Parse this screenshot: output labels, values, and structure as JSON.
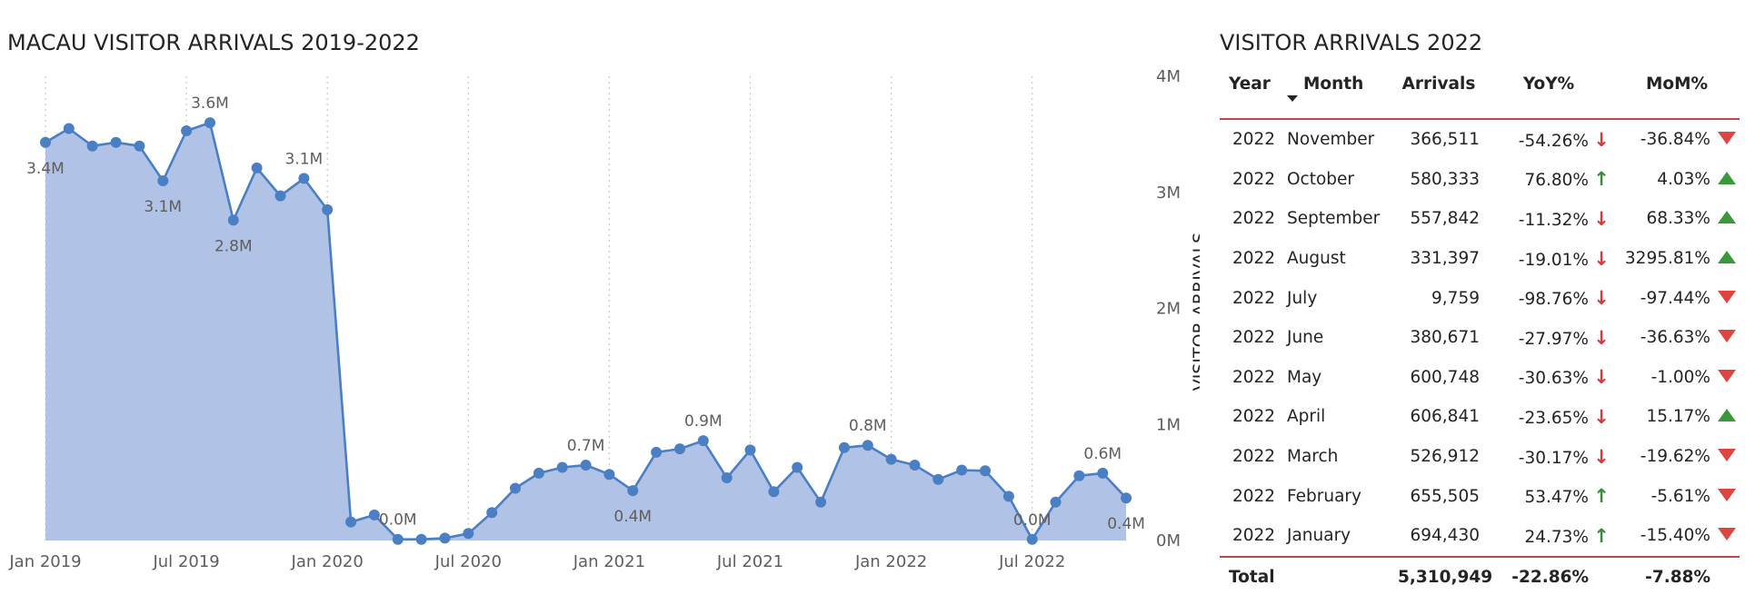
{
  "chart_title": "MACAU VISITOR ARRIVALS 2019-2022",
  "chart_data": {
    "type": "area",
    "title": "MACAU VISITOR ARRIVALS 2019-2022",
    "ylabel": "VISITOR ARRIVALS",
    "xlabel": "",
    "ylim": [
      0,
      4000000
    ],
    "y_ticks": [
      {
        "value": 4000000,
        "label": "4M"
      },
      {
        "value": 3000000,
        "label": "3M"
      },
      {
        "value": 2000000,
        "label": "2M"
      },
      {
        "value": 1000000,
        "label": "1M"
      },
      {
        "value": 0,
        "label": "0M"
      }
    ],
    "x_ticks": [
      {
        "index": 0,
        "label": "Jan 2019"
      },
      {
        "index": 6,
        "label": "Jul 2019"
      },
      {
        "index": 12,
        "label": "Jan 2020"
      },
      {
        "index": 18,
        "label": "Jul 2020"
      },
      {
        "index": 24,
        "label": "Jan 2021"
      },
      {
        "index": 30,
        "label": "Jul 2021"
      },
      {
        "index": 36,
        "label": "Jan 2022"
      },
      {
        "index": 42,
        "label": "Jul 2022"
      }
    ],
    "x": [
      "2019-01",
      "2019-02",
      "2019-03",
      "2019-04",
      "2019-05",
      "2019-06",
      "2019-07",
      "2019-08",
      "2019-09",
      "2019-10",
      "2019-11",
      "2019-12",
      "2020-01",
      "2020-02",
      "2020-03",
      "2020-04",
      "2020-05",
      "2020-06",
      "2020-07",
      "2020-08",
      "2020-09",
      "2020-10",
      "2020-11",
      "2020-12",
      "2021-01",
      "2021-02",
      "2021-03",
      "2021-04",
      "2021-05",
      "2021-06",
      "2021-07",
      "2021-08",
      "2021-09",
      "2021-10",
      "2021-11",
      "2021-12",
      "2022-01",
      "2022-02",
      "2022-03",
      "2022-04",
      "2022-05",
      "2022-06",
      "2022-07",
      "2022-08",
      "2022-09",
      "2022-10",
      "2022-11"
    ],
    "series": [
      {
        "values": [
          3430000,
          3550000,
          3400000,
          3430000,
          3400000,
          3100000,
          3530000,
          3600000,
          2760000,
          3210000,
          2970000,
          3120000,
          2850000,
          160000,
          220000,
          10000,
          10000,
          20000,
          60000,
          240000,
          450000,
          580000,
          630000,
          650000,
          570000,
          430000,
          760000,
          790000,
          860000,
          540000,
          780000,
          420000,
          630000,
          330000,
          800000,
          820000,
          700000,
          650000,
          526912,
          606841,
          600748,
          380671,
          9759,
          331397,
          557842,
          580333,
          366511
        ]
      }
    ],
    "data_labels": [
      {
        "index": 0,
        "label": "3.4M",
        "pos": "below"
      },
      {
        "index": 5,
        "label": "3.1M",
        "pos": "below"
      },
      {
        "index": 7,
        "label": "3.6M",
        "pos": "above"
      },
      {
        "index": 8,
        "label": "2.8M",
        "pos": "below"
      },
      {
        "index": 11,
        "label": "3.1M",
        "pos": "above"
      },
      {
        "index": 15,
        "label": "0.0M",
        "pos": "above"
      },
      {
        "index": 23,
        "label": "0.7M",
        "pos": "above"
      },
      {
        "index": 25,
        "label": "0.4M",
        "pos": "below"
      },
      {
        "index": 28,
        "label": "0.9M",
        "pos": "above"
      },
      {
        "index": 35,
        "label": "0.8M",
        "pos": "above"
      },
      {
        "index": 42,
        "label": "0.0M",
        "pos": "above"
      },
      {
        "index": 45,
        "label": "0.6M",
        "pos": "above"
      },
      {
        "index": 46,
        "label": "0.4M",
        "pos": "below"
      }
    ],
    "grid": "vertical-dotted",
    "line_color": "#4a7fc4",
    "fill_color": "#b0c3e6"
  },
  "table": {
    "title": "VISITOR ARRIVALS 2022",
    "headers": {
      "year": "Year",
      "month": "Month",
      "arrivals": "Arrivals",
      "yoy": "YoY%",
      "mom": "MoM%"
    },
    "rows": [
      {
        "year": "2022",
        "month": "November",
        "arrivals": "366,511",
        "yoy": "-54.26%",
        "yoy_dir": "down",
        "mom": "-36.84%",
        "mom_dir": "down"
      },
      {
        "year": "2022",
        "month": "October",
        "arrivals": "580,333",
        "yoy": "76.80%",
        "yoy_dir": "up",
        "mom": "4.03%",
        "mom_dir": "up"
      },
      {
        "year": "2022",
        "month": "September",
        "arrivals": "557,842",
        "yoy": "-11.32%",
        "yoy_dir": "down",
        "mom": "68.33%",
        "mom_dir": "up"
      },
      {
        "year": "2022",
        "month": "August",
        "arrivals": "331,397",
        "yoy": "-19.01%",
        "yoy_dir": "down",
        "mom": "3295.81%",
        "mom_dir": "up"
      },
      {
        "year": "2022",
        "month": "July",
        "arrivals": "9,759",
        "yoy": "-98.76%",
        "yoy_dir": "down",
        "mom": "-97.44%",
        "mom_dir": "down"
      },
      {
        "year": "2022",
        "month": "June",
        "arrivals": "380,671",
        "yoy": "-27.97%",
        "yoy_dir": "down",
        "mom": "-36.63%",
        "mom_dir": "down"
      },
      {
        "year": "2022",
        "month": "May",
        "arrivals": "600,748",
        "yoy": "-30.63%",
        "yoy_dir": "down",
        "mom": "-1.00%",
        "mom_dir": "down"
      },
      {
        "year": "2022",
        "month": "April",
        "arrivals": "606,841",
        "yoy": "-23.65%",
        "yoy_dir": "down",
        "mom": "15.17%",
        "mom_dir": "up"
      },
      {
        "year": "2022",
        "month": "March",
        "arrivals": "526,912",
        "yoy": "-30.17%",
        "yoy_dir": "down",
        "mom": "-19.62%",
        "mom_dir": "down"
      },
      {
        "year": "2022",
        "month": "February",
        "arrivals": "655,505",
        "yoy": "53.47%",
        "yoy_dir": "up",
        "mom": "-5.61%",
        "mom_dir": "down"
      },
      {
        "year": "2022",
        "month": "January",
        "arrivals": "694,430",
        "yoy": "24.73%",
        "yoy_dir": "up",
        "mom": "-15.40%",
        "mom_dir": "down"
      }
    ],
    "total": {
      "label": "Total",
      "arrivals": "5,310,949",
      "yoy": "-22.86%",
      "mom": "-7.88%"
    },
    "colors": {
      "up_arrow": "#3a8a3a",
      "down_arrow": "#d9383a",
      "up_triangle": "#3a9a3a",
      "down_triangle": "#e0443e",
      "rule": "#c0464b"
    }
  }
}
